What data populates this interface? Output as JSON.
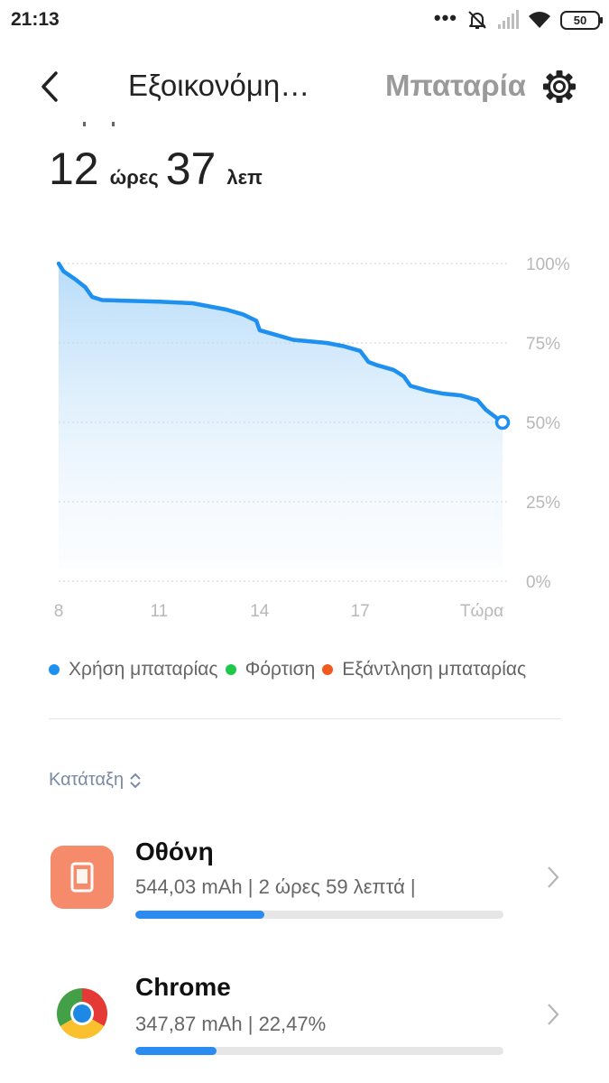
{
  "status_bar": {
    "time": "21:13",
    "battery_level": "50"
  },
  "header": {
    "title": "Εξοικονόμη…",
    "tab": "Μπαταρία"
  },
  "remaining": {
    "hours": "12",
    "hours_unit": "ώρες",
    "minutes": "37",
    "minutes_unit": "λεπ"
  },
  "chart_data": {
    "type": "area",
    "x_ticks": [
      "8",
      "11",
      "14",
      "17",
      "Τώρα"
    ],
    "y_ticks": [
      "100%",
      "75%",
      "50%",
      "25%",
      "0%"
    ],
    "ylim": [
      0,
      100
    ],
    "x_hours": [
      8.0,
      8.15,
      8.5,
      8.8,
      9.0,
      9.3,
      10.0,
      11.0,
      12.0,
      12.5,
      13.0,
      13.5,
      13.9,
      14.0,
      14.5,
      15.0,
      15.5,
      16.0,
      16.5,
      17.0,
      17.25,
      17.5,
      18.0,
      18.3,
      18.5,
      19.0,
      19.5,
      20.0,
      20.5,
      20.75,
      21.0,
      21.25
    ],
    "y_percent": [
      100,
      97.5,
      95,
      92.5,
      89.5,
      88.5,
      88.3,
      88.0,
      87.5,
      86.5,
      85.5,
      84.0,
      82.0,
      79.0,
      77.5,
      76.0,
      75.5,
      75.0,
      74.0,
      72.5,
      69.0,
      68.0,
      66.5,
      64.5,
      61.5,
      60.0,
      59.0,
      58.5,
      57.0,
      54.0,
      52.0,
      50.0
    ],
    "current_x": 21.25,
    "current_y": 50,
    "grid": true,
    "line_color": "#1e90f0"
  },
  "legend": [
    {
      "label": "Χρήση μπαταρίας",
      "color": "#1e90f0"
    },
    {
      "label": "Φόρτιση",
      "color": "#1ec84b"
    },
    {
      "label": "Εξάντληση μπαταρίας",
      "color": "#f05a1e"
    }
  ],
  "sort": {
    "label": "Κατάταξη"
  },
  "apps": [
    {
      "name": "Οθόνη",
      "stats": "544,03 mAh | 2 ώρες 59 λεπτά  |",
      "usage_fraction": 0.35,
      "icon": "screen-icon"
    },
    {
      "name": "Chrome",
      "stats": "347,87 mAh | 22,47%",
      "usage_fraction": 0.22,
      "icon": "chrome-icon"
    }
  ]
}
